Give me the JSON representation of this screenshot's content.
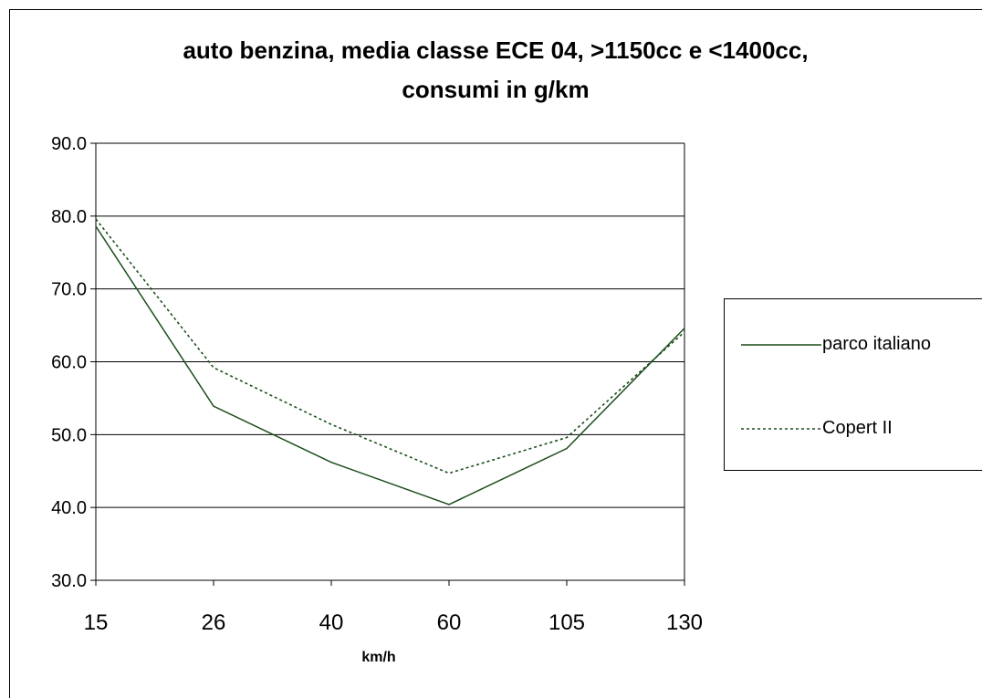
{
  "chart_data": {
    "type": "line",
    "title": "auto benzina, media classe ECE 04, >1150cc e <1400cc,",
    "subtitle": "consumi in g/km",
    "xlabel": "km/h",
    "ylabel": "",
    "categories": [
      "15",
      "26",
      "40",
      "60",
      "105",
      "130"
    ],
    "ylim": [
      30,
      90
    ],
    "yticks": [
      "30.0",
      "40.0",
      "50.0",
      "60.0",
      "70.0",
      "80.0",
      "90.0"
    ],
    "grid": "horizontal",
    "legend_position": "right",
    "series": [
      {
        "name": "parco italiano",
        "values": [
          78.6,
          53.9,
          46.2,
          40.4,
          48.1,
          64.6
        ],
        "color": "#1b4d1b",
        "style": "solid"
      },
      {
        "name": "Copert  II",
        "values": [
          79.6,
          59.2,
          51.4,
          44.7,
          49.6,
          64.1
        ],
        "color": "#1b4d1b",
        "style": "dotted"
      }
    ]
  }
}
